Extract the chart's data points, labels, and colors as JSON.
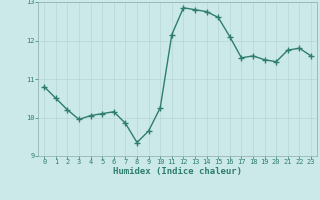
{
  "x": [
    0,
    1,
    2,
    3,
    4,
    5,
    6,
    7,
    8,
    9,
    10,
    11,
    12,
    13,
    14,
    15,
    16,
    17,
    18,
    19,
    20,
    21,
    22,
    23
  ],
  "y": [
    10.8,
    10.5,
    10.2,
    9.95,
    10.05,
    10.1,
    10.15,
    9.85,
    9.35,
    9.65,
    10.25,
    12.15,
    12.85,
    12.8,
    12.75,
    12.6,
    12.1,
    11.55,
    11.6,
    11.5,
    11.45,
    11.75,
    11.8,
    11.6
  ],
  "line_color": "#2e7d6e",
  "marker": "+",
  "marker_size": 4.0,
  "bg_color": "#cce9ea",
  "grid_color": "#b8d5d6",
  "xlabel": "Humidex (Indice chaleur)",
  "ylim": [
    9.0,
    13.0
  ],
  "xlim": [
    -0.5,
    23.5
  ],
  "yticks": [
    9,
    10,
    11,
    12,
    13
  ],
  "xticks": [
    0,
    1,
    2,
    3,
    4,
    5,
    6,
    7,
    8,
    9,
    10,
    11,
    12,
    13,
    14,
    15,
    16,
    17,
    18,
    19,
    20,
    21,
    22,
    23
  ],
  "tick_color": "#2e7d6e",
  "label_color": "#2e7d6e",
  "linewidth": 1.0,
  "spine_color": "#8aabac"
}
